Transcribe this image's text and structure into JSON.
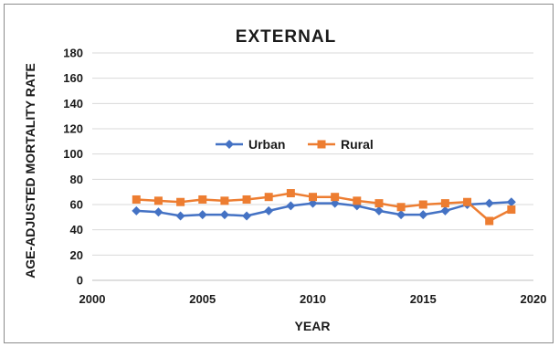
{
  "chart_data": {
    "type": "line",
    "title": "EXTERNAL",
    "xlabel": "YEAR",
    "ylabel": "AGE-ADJUSTED MORTALITY RATE",
    "xlim": [
      2000,
      2020
    ],
    "ylim": [
      0,
      180
    ],
    "xticks": [
      2000,
      2005,
      2010,
      2015,
      2020
    ],
    "yticks": [
      0,
      20,
      40,
      60,
      80,
      100,
      120,
      140,
      160,
      180
    ],
    "grid": "horizontal",
    "legend_position": "center",
    "x": [
      2002,
      2003,
      2004,
      2005,
      2006,
      2007,
      2008,
      2009,
      2010,
      2011,
      2012,
      2013,
      2014,
      2015,
      2016,
      2017,
      2018,
      2019
    ],
    "series": [
      {
        "name": "Urban",
        "color": "#4472C4",
        "marker": "diamond",
        "values": [
          55,
          54,
          51,
          52,
          52,
          51,
          55,
          59,
          61,
          61,
          59,
          55,
          52,
          52,
          55,
          60,
          61,
          62
        ]
      },
      {
        "name": "Rural",
        "color": "#ED7D31",
        "marker": "square",
        "values": [
          64,
          63,
          62,
          64,
          63,
          64,
          66,
          69,
          66,
          66,
          63,
          61,
          58,
          60,
          61,
          62,
          47,
          56
        ]
      }
    ]
  }
}
